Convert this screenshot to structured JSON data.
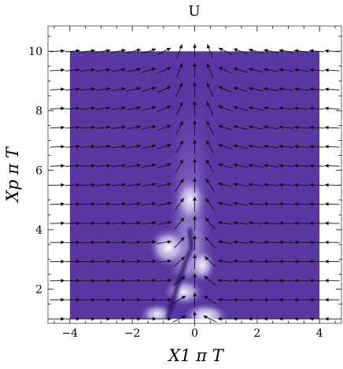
{
  "chart_data": {
    "type": "vector field with density plot",
    "title": "U",
    "xlabel": "X1 π T",
    "ylabel": "Xp π T",
    "xlim": [
      -4.7,
      4.7
    ],
    "ylim": [
      0.85,
      10.85
    ],
    "x_ticks": [
      -4,
      -2,
      0,
      2,
      4
    ],
    "x_tick_labels": [
      "−4",
      "−2",
      "0",
      "2",
      "4"
    ],
    "y_ticks": [
      2,
      4,
      6,
      8,
      10
    ],
    "y_tick_labels": [
      "2",
      "4",
      "6",
      "8",
      "10"
    ],
    "density_region": {
      "x": [
        -4,
        4
      ],
      "y": [
        1,
        10
      ]
    },
    "colors": {
      "background_purple": "#5a36a2",
      "bright_spot": "#f2eef9",
      "dark_streak": "#2b0b6c"
    },
    "legend": "none",
    "grid": false
  }
}
